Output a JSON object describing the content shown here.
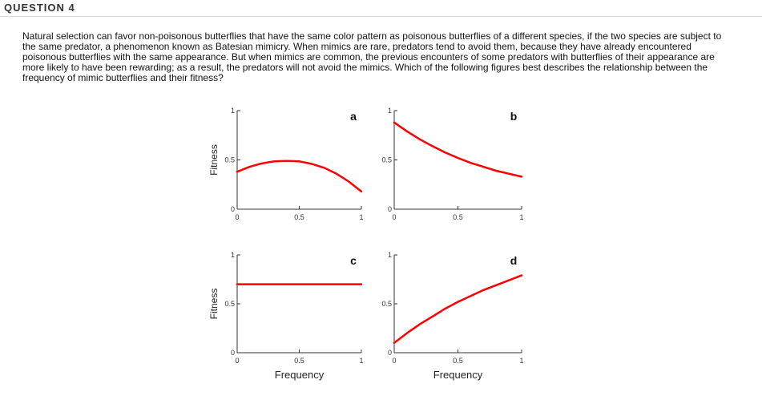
{
  "question": {
    "title": "QUESTION 4",
    "text": "Natural selection can favor non-poisonous butterflies that have the same color pattern as poisonous butterflies of a different species, if the two species are subject to the same predator, a phenomenon known as Batesian mimicry. When mimics are rare, predators tend to avoid them, because they have already encountered poisonous butterflies with the same appearance. But when mimics are common, the previous encounters of some predators with butterflies of their appearance are more likely to have been rewarding; as a result, the predators will not avoid the mimics. Which of the following figures best describes the relationship between the frequency of mimic butterflies and their fitness?"
  },
  "figure": {
    "ylabel": "Fitness",
    "xlabel": "Frequency",
    "x_ticks": [
      "0",
      "0.5",
      "1"
    ],
    "y_ticks": [
      "0",
      "0.5",
      "1"
    ],
    "curve_color": "#ff0000"
  },
  "chart_data": [
    {
      "type": "line",
      "panel": "a",
      "xlim": [
        0,
        1
      ],
      "ylim": [
        0,
        1
      ],
      "grid": false,
      "x": [
        0,
        0.1,
        0.2,
        0.3,
        0.4,
        0.5,
        0.6,
        0.7,
        0.8,
        0.9,
        1.0
      ],
      "y": [
        0.38,
        0.43,
        0.465,
        0.485,
        0.49,
        0.485,
        0.46,
        0.42,
        0.36,
        0.28,
        0.18
      ]
    },
    {
      "type": "line",
      "panel": "b",
      "xlim": [
        0,
        1
      ],
      "ylim": [
        0,
        1
      ],
      "grid": false,
      "x": [
        0,
        0.1,
        0.2,
        0.3,
        0.4,
        0.5,
        0.6,
        0.7,
        0.8,
        0.9,
        1.0
      ],
      "y": [
        0.88,
        0.79,
        0.71,
        0.64,
        0.575,
        0.52,
        0.47,
        0.43,
        0.39,
        0.36,
        0.33
      ]
    },
    {
      "type": "line",
      "panel": "c",
      "xlim": [
        0,
        1
      ],
      "ylim": [
        0,
        1
      ],
      "grid": false,
      "x": [
        0,
        1
      ],
      "y": [
        0.7,
        0.7
      ]
    },
    {
      "type": "line",
      "panel": "d",
      "xlim": [
        0,
        1
      ],
      "ylim": [
        0,
        1
      ],
      "grid": false,
      "x": [
        0,
        0.1,
        0.2,
        0.3,
        0.4,
        0.5,
        0.6,
        0.7,
        0.8,
        0.9,
        1.0
      ],
      "y": [
        0.1,
        0.2,
        0.29,
        0.37,
        0.45,
        0.52,
        0.58,
        0.64,
        0.69,
        0.74,
        0.79
      ]
    }
  ]
}
